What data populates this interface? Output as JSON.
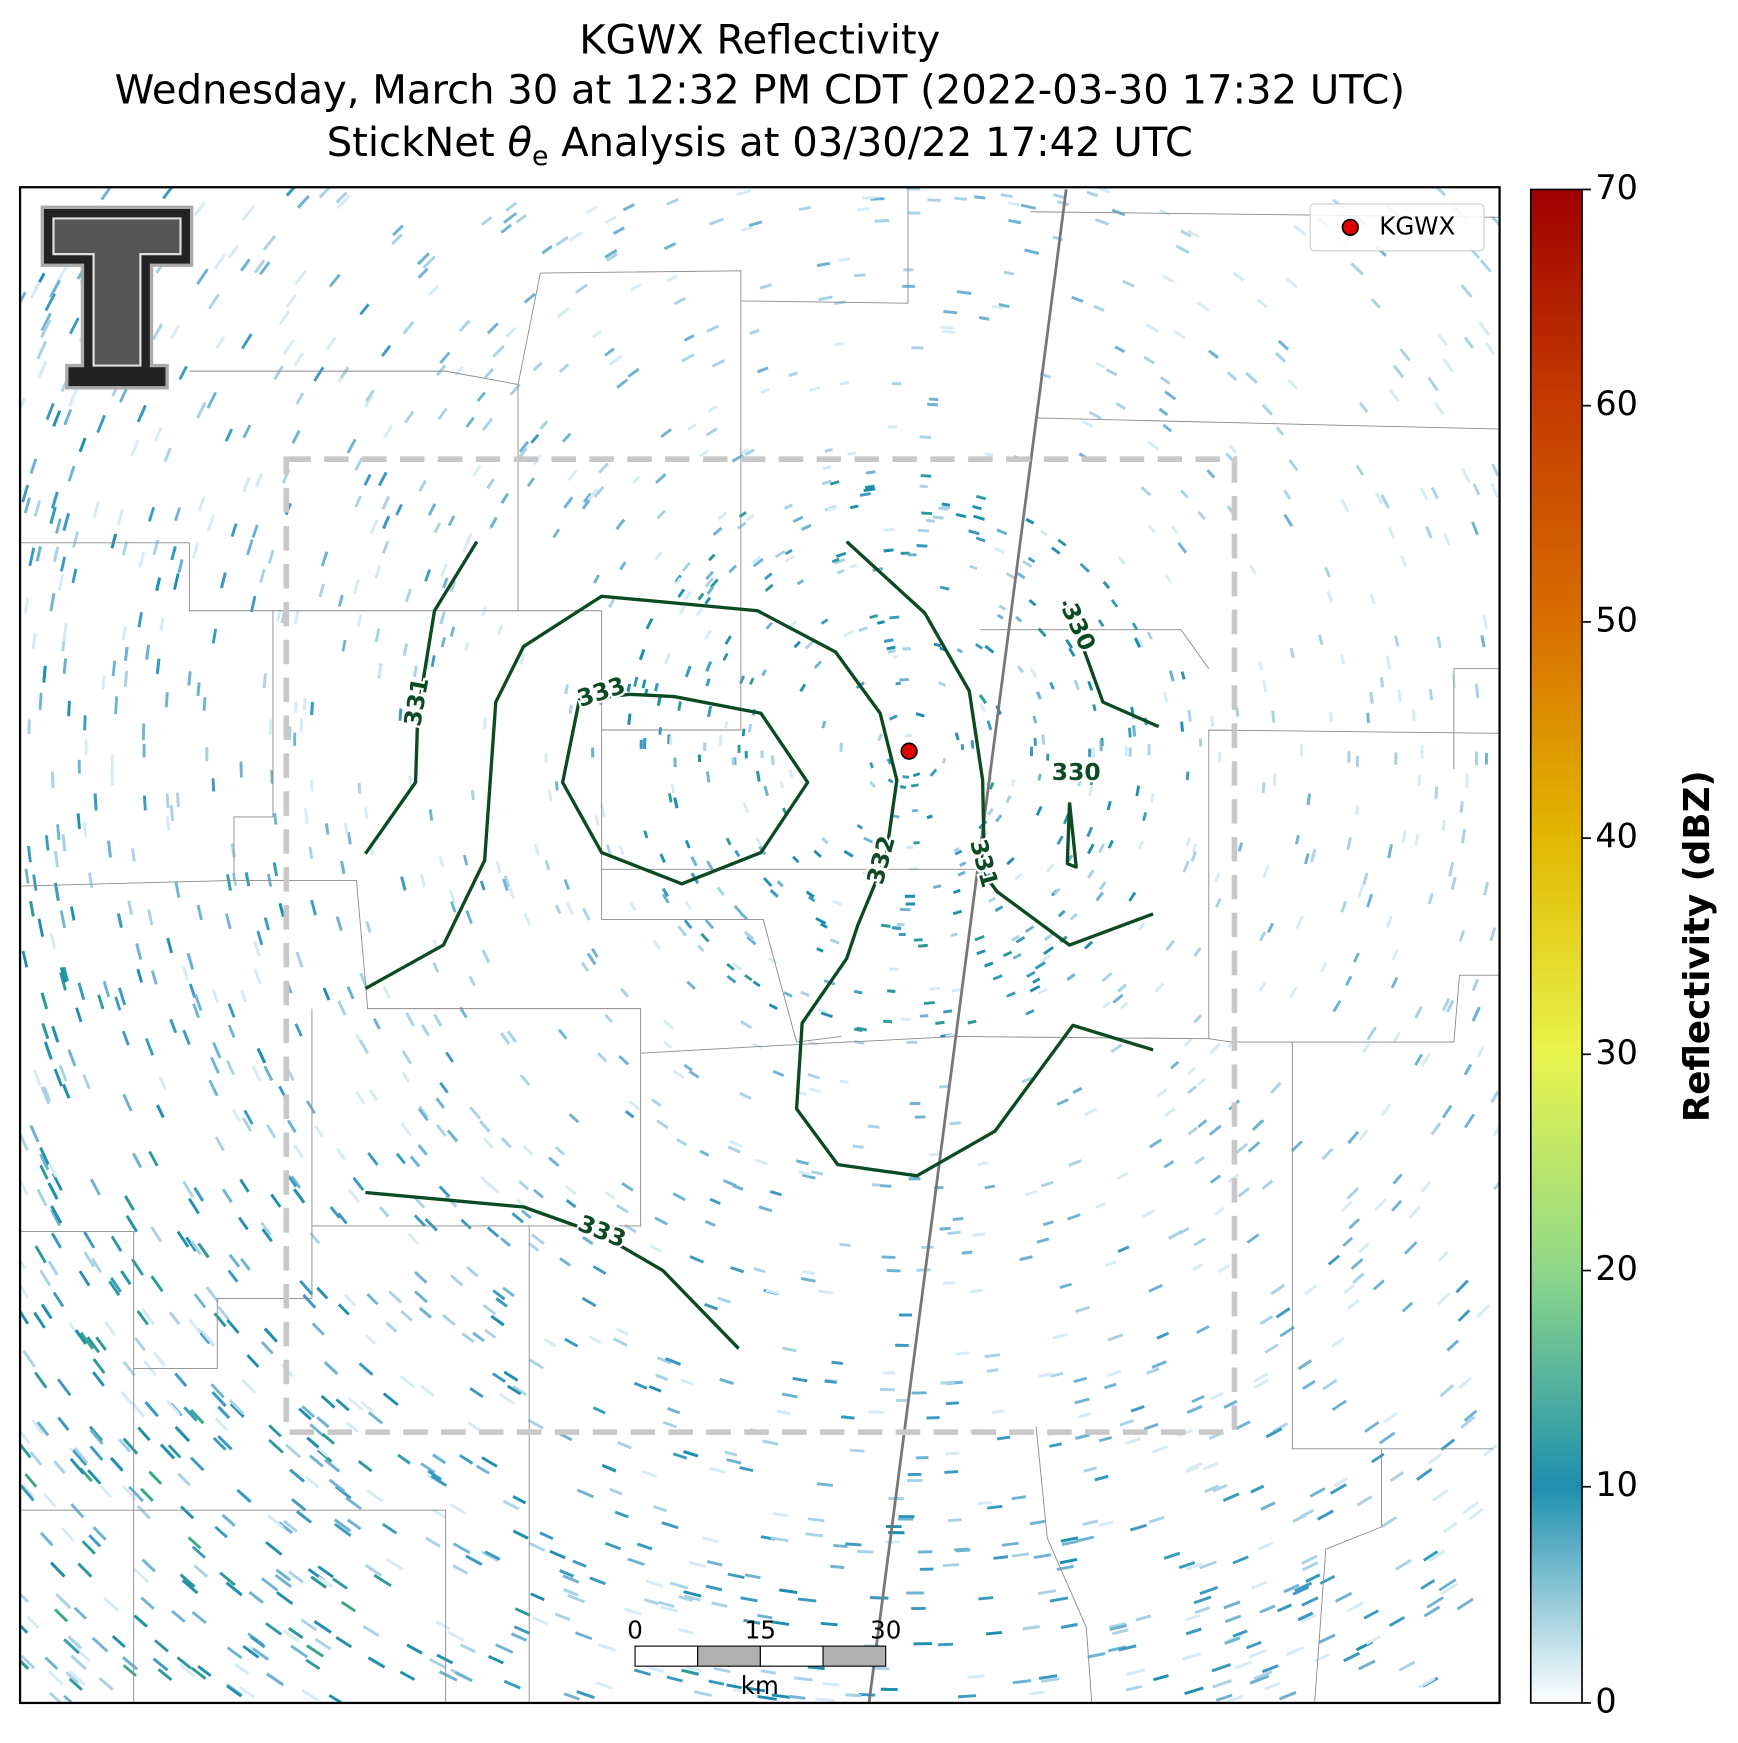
{
  "title": "KGWX Reflectivity",
  "subtitle": "Wednesday, March 30 at 12:32 PM CDT (2022-03-30 17:32 UTC)",
  "analysis_line": {
    "prefix": "StickNet ",
    "symbol": "θ",
    "subscript": "e",
    "suffix": " Analysis at 03/30/22 17:42 UTC"
  },
  "legend": {
    "label": "KGWX",
    "marker_color": "#e00000",
    "corner": "upper right"
  },
  "colorbar": {
    "label": "Reflectivity (dBZ)",
    "lim": [
      0,
      70
    ],
    "ticks": [
      0,
      10,
      20,
      30,
      40,
      50,
      60,
      70
    ],
    "colors": [
      "#ffffff",
      "#1e8fae",
      "#8fd88a",
      "#e8f44c",
      "#e2b800",
      "#d86e00",
      "#c43c00",
      "#a00000"
    ]
  },
  "contours": [
    {
      "level": 331
    },
    {
      "level": 332
    },
    {
      "level": 333
    },
    {
      "level": 331
    },
    {
      "level": 330
    },
    {
      "level": 330
    },
    {
      "level": 333
    }
  ],
  "scale_bar": {
    "ticks": [
      0,
      15,
      30
    ],
    "unit": "km"
  }
}
